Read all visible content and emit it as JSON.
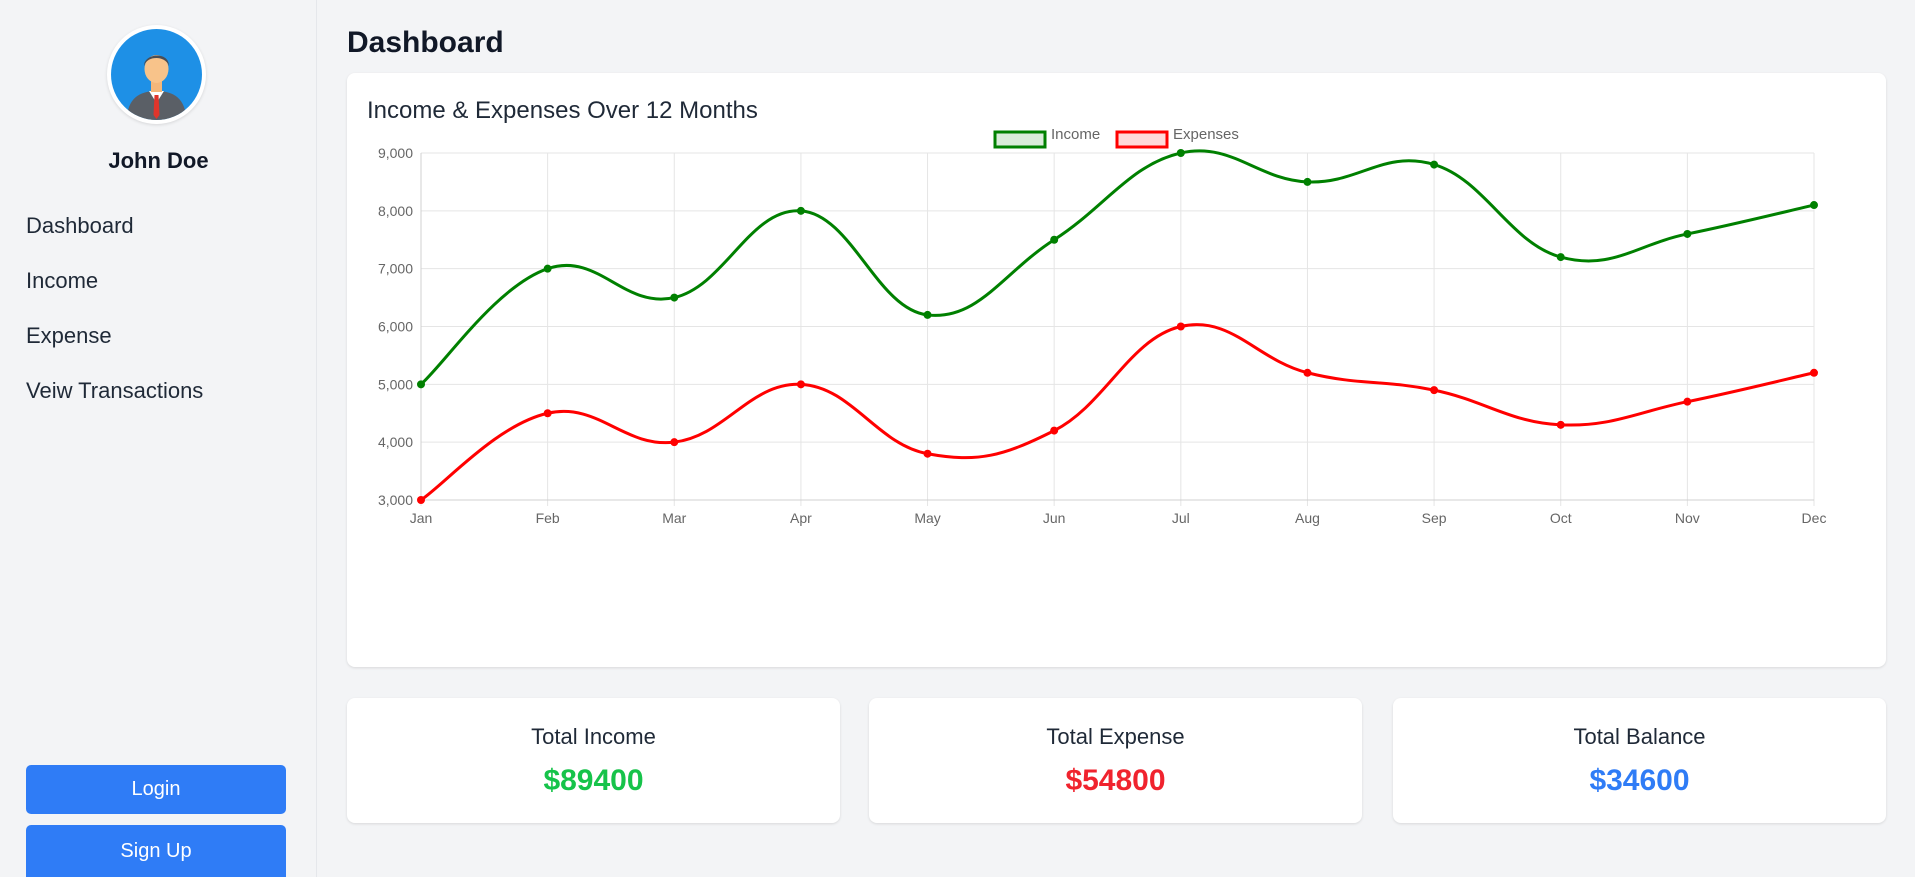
{
  "sidebar": {
    "user_name": "John Doe",
    "nav": [
      "Dashboard",
      "Income",
      "Expense",
      "Veiw Transactions"
    ],
    "login_label": "Login",
    "signup_label": "Sign Up"
  },
  "page": {
    "title": "Dashboard"
  },
  "chart_card": {
    "title": "Income & Expenses Over 12 Months"
  },
  "chart_data": {
    "type": "line",
    "title": "Income & Expenses Over 12 Months",
    "categories": [
      "Jan",
      "Feb",
      "Mar",
      "Apr",
      "May",
      "Jun",
      "Jul",
      "Aug",
      "Sep",
      "Oct",
      "Nov",
      "Dec"
    ],
    "series": [
      {
        "name": "Income",
        "color": "#008000",
        "fill": "#d9ecd9",
        "values": [
          5000,
          7000,
          6500,
          8000,
          6200,
          7500,
          9000,
          8500,
          8800,
          7200,
          7600,
          8100
        ]
      },
      {
        "name": "Expenses",
        "color": "#ff0000",
        "fill": "#ffd9d9",
        "values": [
          3000,
          4500,
          4000,
          5000,
          3800,
          4200,
          6000,
          5200,
          4900,
          4300,
          4700,
          5200
        ]
      }
    ],
    "ylim": [
      3000,
      9000
    ],
    "yticks": [
      "3,000",
      "4,000",
      "5,000",
      "6,000",
      "7,000",
      "8,000",
      "9,000"
    ],
    "grid": true,
    "legend": "top-center"
  },
  "stats": [
    {
      "label": "Total Income",
      "value": "$89400",
      "color": "#16c34a"
    },
    {
      "label": "Total Expense",
      "value": "$54800",
      "color": "#f0232e"
    },
    {
      "label": "Total Balance",
      "value": "$34600",
      "color": "#2f7cf6"
    }
  ]
}
